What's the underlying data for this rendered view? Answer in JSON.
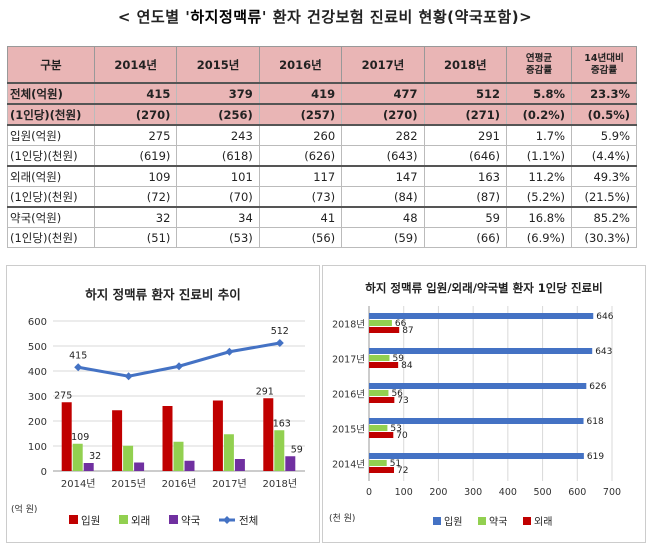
{
  "title": {
    "pre": "< 연도별 '",
    "emph": "하지정맥류",
    "post": "' 환자 건강보험 진료비 현황(약국포함)>"
  },
  "table": {
    "headers": [
      "구분",
      "2014년",
      "2015년",
      "2016년",
      "2017년",
      "2018년",
      "연평균\n증감률",
      "14년대비\n증감률"
    ],
    "rows": [
      {
        "label": "전체(억원)",
        "values": [
          "415",
          "379",
          "419",
          "477",
          "512",
          "5.8%",
          "23.3%"
        ],
        "style": "total"
      },
      {
        "label": "(1인당)(천원)",
        "values": [
          "(270)",
          "(256)",
          "(257)",
          "(270)",
          "(271)",
          "(0.2%)",
          "(0.5%)"
        ],
        "style": "total"
      },
      {
        "label": "입원(억원)",
        "values": [
          "275",
          "243",
          "260",
          "282",
          "291",
          "1.7%",
          "5.9%"
        ],
        "style": "sep"
      },
      {
        "label": "(1인당)(천원)",
        "values": [
          "(619)",
          "(618)",
          "(626)",
          "(643)",
          "(646)",
          "(1.1%)",
          "(4.4%)"
        ],
        "style": ""
      },
      {
        "label": "외래(억원)",
        "values": [
          "109",
          "101",
          "117",
          "147",
          "163",
          "11.2%",
          "49.3%"
        ],
        "style": "sep"
      },
      {
        "label": "(1인당)(천원)",
        "values": [
          "(72)",
          "(70)",
          "(73)",
          "(84)",
          "(87)",
          "(5.2%)",
          "(21.5%)"
        ],
        "style": ""
      },
      {
        "label": "약국(억원)",
        "values": [
          "32",
          "34",
          "41",
          "48",
          "59",
          "16.8%",
          "85.2%"
        ],
        "style": "sep"
      },
      {
        "label": "(1인당)(천원)",
        "values": [
          "(51)",
          "(53)",
          "(56)",
          "(59)",
          "(66)",
          "(6.9%)",
          "(30.3%)"
        ],
        "style": ""
      }
    ]
  },
  "colors": {
    "inpatient": "#c00000",
    "outpatient": "#92d050",
    "pharmacy": "#7030a0",
    "total": "#4472c4",
    "bar_blue": "#4472c4"
  },
  "chart_data": [
    {
      "type": "bar",
      "title": "하지 정맥류 환자 진료비 추이",
      "categories": [
        "2014년",
        "2015년",
        "2016년",
        "2017년",
        "2018년"
      ],
      "ylim": [
        0,
        600
      ],
      "yticks": [
        "0",
        "100",
        "200",
        "300",
        "400",
        "500",
        "600"
      ],
      "unit": "(억 원)",
      "series": [
        {
          "name": "입원",
          "kind": "bar",
          "values": [
            275,
            243,
            260,
            282,
            291
          ]
        },
        {
          "name": "외래",
          "kind": "bar",
          "values": [
            109,
            101,
            117,
            147,
            163
          ]
        },
        {
          "name": "약국",
          "kind": "bar",
          "values": [
            32,
            34,
            41,
            48,
            59
          ]
        },
        {
          "name": "전체",
          "kind": "line",
          "values": [
            415,
            379,
            419,
            477,
            512
          ]
        }
      ],
      "data_labels": [
        {
          "series": "전체",
          "index": 0,
          "text": "415"
        },
        {
          "series": "전체",
          "index": 4,
          "text": "512"
        },
        {
          "series": "입원",
          "index": 0,
          "text": "275"
        },
        {
          "series": "외래",
          "index": 0,
          "text": "109"
        },
        {
          "series": "약국",
          "index": 0,
          "text": "32"
        },
        {
          "series": "입원",
          "index": 4,
          "text": "291"
        },
        {
          "series": "외래",
          "index": 4,
          "text": "163"
        },
        {
          "series": "약국",
          "index": 4,
          "text": "59"
        }
      ],
      "legend": "bottom"
    },
    {
      "type": "bar",
      "orientation": "horizontal",
      "title": "하지 정맥류 입원/외래/약국별 환자 1인당 진료비",
      "categories": [
        "2014년",
        "2015년",
        "2016년",
        "2017년",
        "2018년"
      ],
      "xlim": [
        0,
        700
      ],
      "xticks": [
        "0",
        "100",
        "200",
        "300",
        "400",
        "500",
        "600",
        "700"
      ],
      "unit": "(천 원)",
      "series": [
        {
          "name": "입원",
          "values": [
            619,
            618,
            626,
            643,
            646
          ]
        },
        {
          "name": "약국",
          "values": [
            51,
            53,
            56,
            59,
            66
          ]
        },
        {
          "name": "외래",
          "values": [
            72,
            70,
            73,
            84,
            87
          ]
        }
      ],
      "legend": "bottom"
    }
  ]
}
